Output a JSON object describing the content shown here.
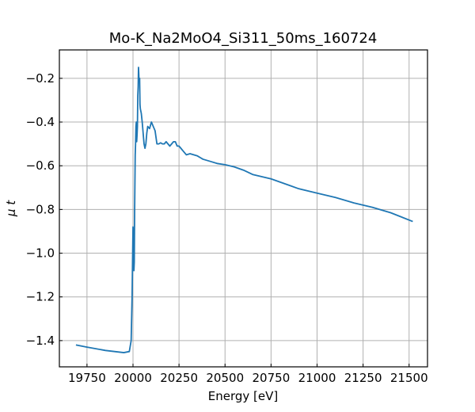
{
  "chart_data": {
    "type": "line",
    "title": "Mo-K_Na2MoO4_Si311_50ms_160724",
    "xlabel": "Energy [eV]",
    "ylabel": "μ t",
    "xlim": [
      19600,
      21600
    ],
    "ylim": [
      -1.52,
      -0.07
    ],
    "xticks": [
      19750,
      20000,
      20250,
      20500,
      20750,
      21000,
      21250,
      21500
    ],
    "xtick_labels": [
      "19750",
      "20000",
      "20250",
      "20500",
      "20750",
      "21000",
      "21250",
      "21500"
    ],
    "yticks": [
      -1.4,
      -1.2,
      -1.0,
      -0.8,
      -0.6,
      -0.4,
      -0.2
    ],
    "ytick_labels": [
      "−1.4",
      "−1.2",
      "−1.0",
      "−0.8",
      "−0.6",
      "−0.4",
      "−0.2"
    ],
    "grid": true,
    "colors": {
      "line": "#1f77b4"
    },
    "series": [
      {
        "x": [
          19690,
          19750,
          19850,
          19950,
          19980,
          19990,
          19995,
          20000,
          20003,
          20005,
          20007,
          20009,
          20012,
          20014,
          20016,
          20018,
          20020,
          20022,
          20024,
          20026,
          20028,
          20030,
          20033,
          20036,
          20038,
          20040,
          20045,
          20050,
          20055,
          20060,
          20065,
          20070,
          20075,
          20080,
          20090,
          20100,
          20110,
          20120,
          20130,
          20140,
          20150,
          20160,
          20170,
          20180,
          20200,
          20220,
          20230,
          20240,
          20250,
          20260,
          20270,
          20290,
          20310,
          20330,
          20350,
          20380,
          20420,
          20460,
          20500,
          20550,
          20600,
          20650,
          20700,
          20750,
          20800,
          20850,
          20900,
          21000,
          21100,
          21200,
          21300,
          21400,
          21520
        ],
        "y": [
          -1.42,
          -1.43,
          -1.445,
          -1.455,
          -1.45,
          -1.4,
          -1.2,
          -0.88,
          -0.92,
          -1.08,
          -1.04,
          -0.8,
          -0.55,
          -0.5,
          -0.42,
          -0.4,
          -0.49,
          -0.46,
          -0.42,
          -0.28,
          -0.24,
          -0.15,
          -0.21,
          -0.2,
          -0.32,
          -0.34,
          -0.36,
          -0.4,
          -0.45,
          -0.5,
          -0.52,
          -0.5,
          -0.45,
          -0.42,
          -0.43,
          -0.4,
          -0.42,
          -0.44,
          -0.5,
          -0.5,
          -0.495,
          -0.5,
          -0.5,
          -0.49,
          -0.51,
          -0.49,
          -0.49,
          -0.51,
          -0.51,
          -0.52,
          -0.53,
          -0.55,
          -0.545,
          -0.55,
          -0.555,
          -0.57,
          -0.58,
          -0.59,
          -0.595,
          -0.605,
          -0.62,
          -0.64,
          -0.65,
          -0.66,
          -0.675,
          -0.69,
          -0.705,
          -0.725,
          -0.745,
          -0.77,
          -0.79,
          -0.815,
          -0.855
        ]
      }
    ]
  }
}
